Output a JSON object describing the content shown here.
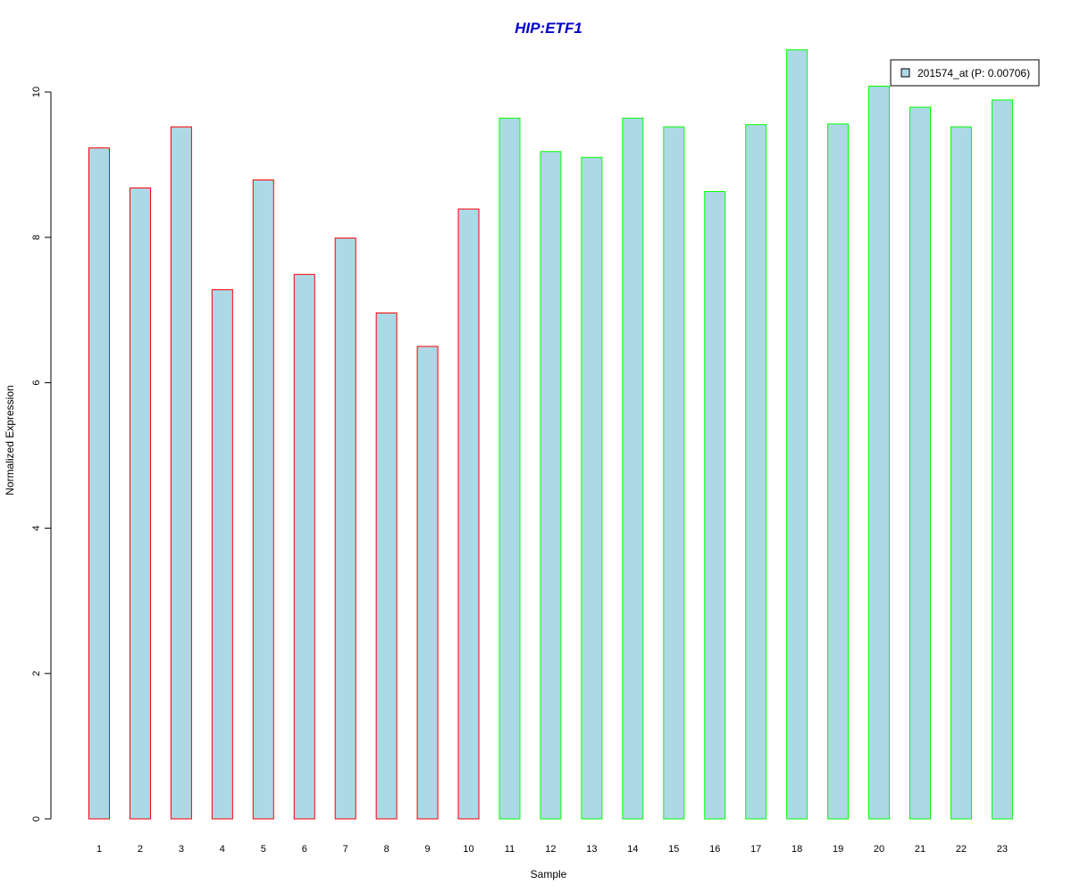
{
  "chart_data": {
    "type": "bar",
    "title": "HIP:ETF1",
    "xlabel": "Sample",
    "ylabel": "Normalized Expression",
    "categories": [
      "1",
      "2",
      "3",
      "4",
      "5",
      "6",
      "7",
      "8",
      "9",
      "10",
      "11",
      "12",
      "13",
      "14",
      "15",
      "16",
      "17",
      "18",
      "19",
      "20",
      "21",
      "22",
      "23"
    ],
    "values": [
      9.23,
      8.68,
      9.52,
      7.28,
      8.79,
      7.49,
      7.99,
      6.96,
      6.5,
      8.39,
      9.64,
      9.18,
      9.1,
      9.64,
      9.52,
      8.63,
      9.55,
      10.58,
      9.56,
      10.08,
      9.79,
      9.52,
      9.89
    ],
    "groups": [
      "red",
      "red",
      "red",
      "red",
      "red",
      "red",
      "red",
      "red",
      "red",
      "red",
      "green",
      "green",
      "green",
      "green",
      "green",
      "green",
      "green",
      "green",
      "green",
      "green",
      "green",
      "green",
      "green"
    ],
    "yticks": [
      "0",
      "2",
      "4",
      "6",
      "8",
      "10"
    ],
    "ylim": [
      0,
      10.6
    ],
    "grid": false,
    "legend": {
      "position": "top-right",
      "entries": [
        "201574_at (P: 0.00706)"
      ]
    },
    "colors": {
      "bar_fill": "#add8e6",
      "group_border": {
        "red": "#ff0000",
        "green": "#00ff00"
      },
      "title": "#0000cd",
      "axis": "#000000"
    }
  }
}
